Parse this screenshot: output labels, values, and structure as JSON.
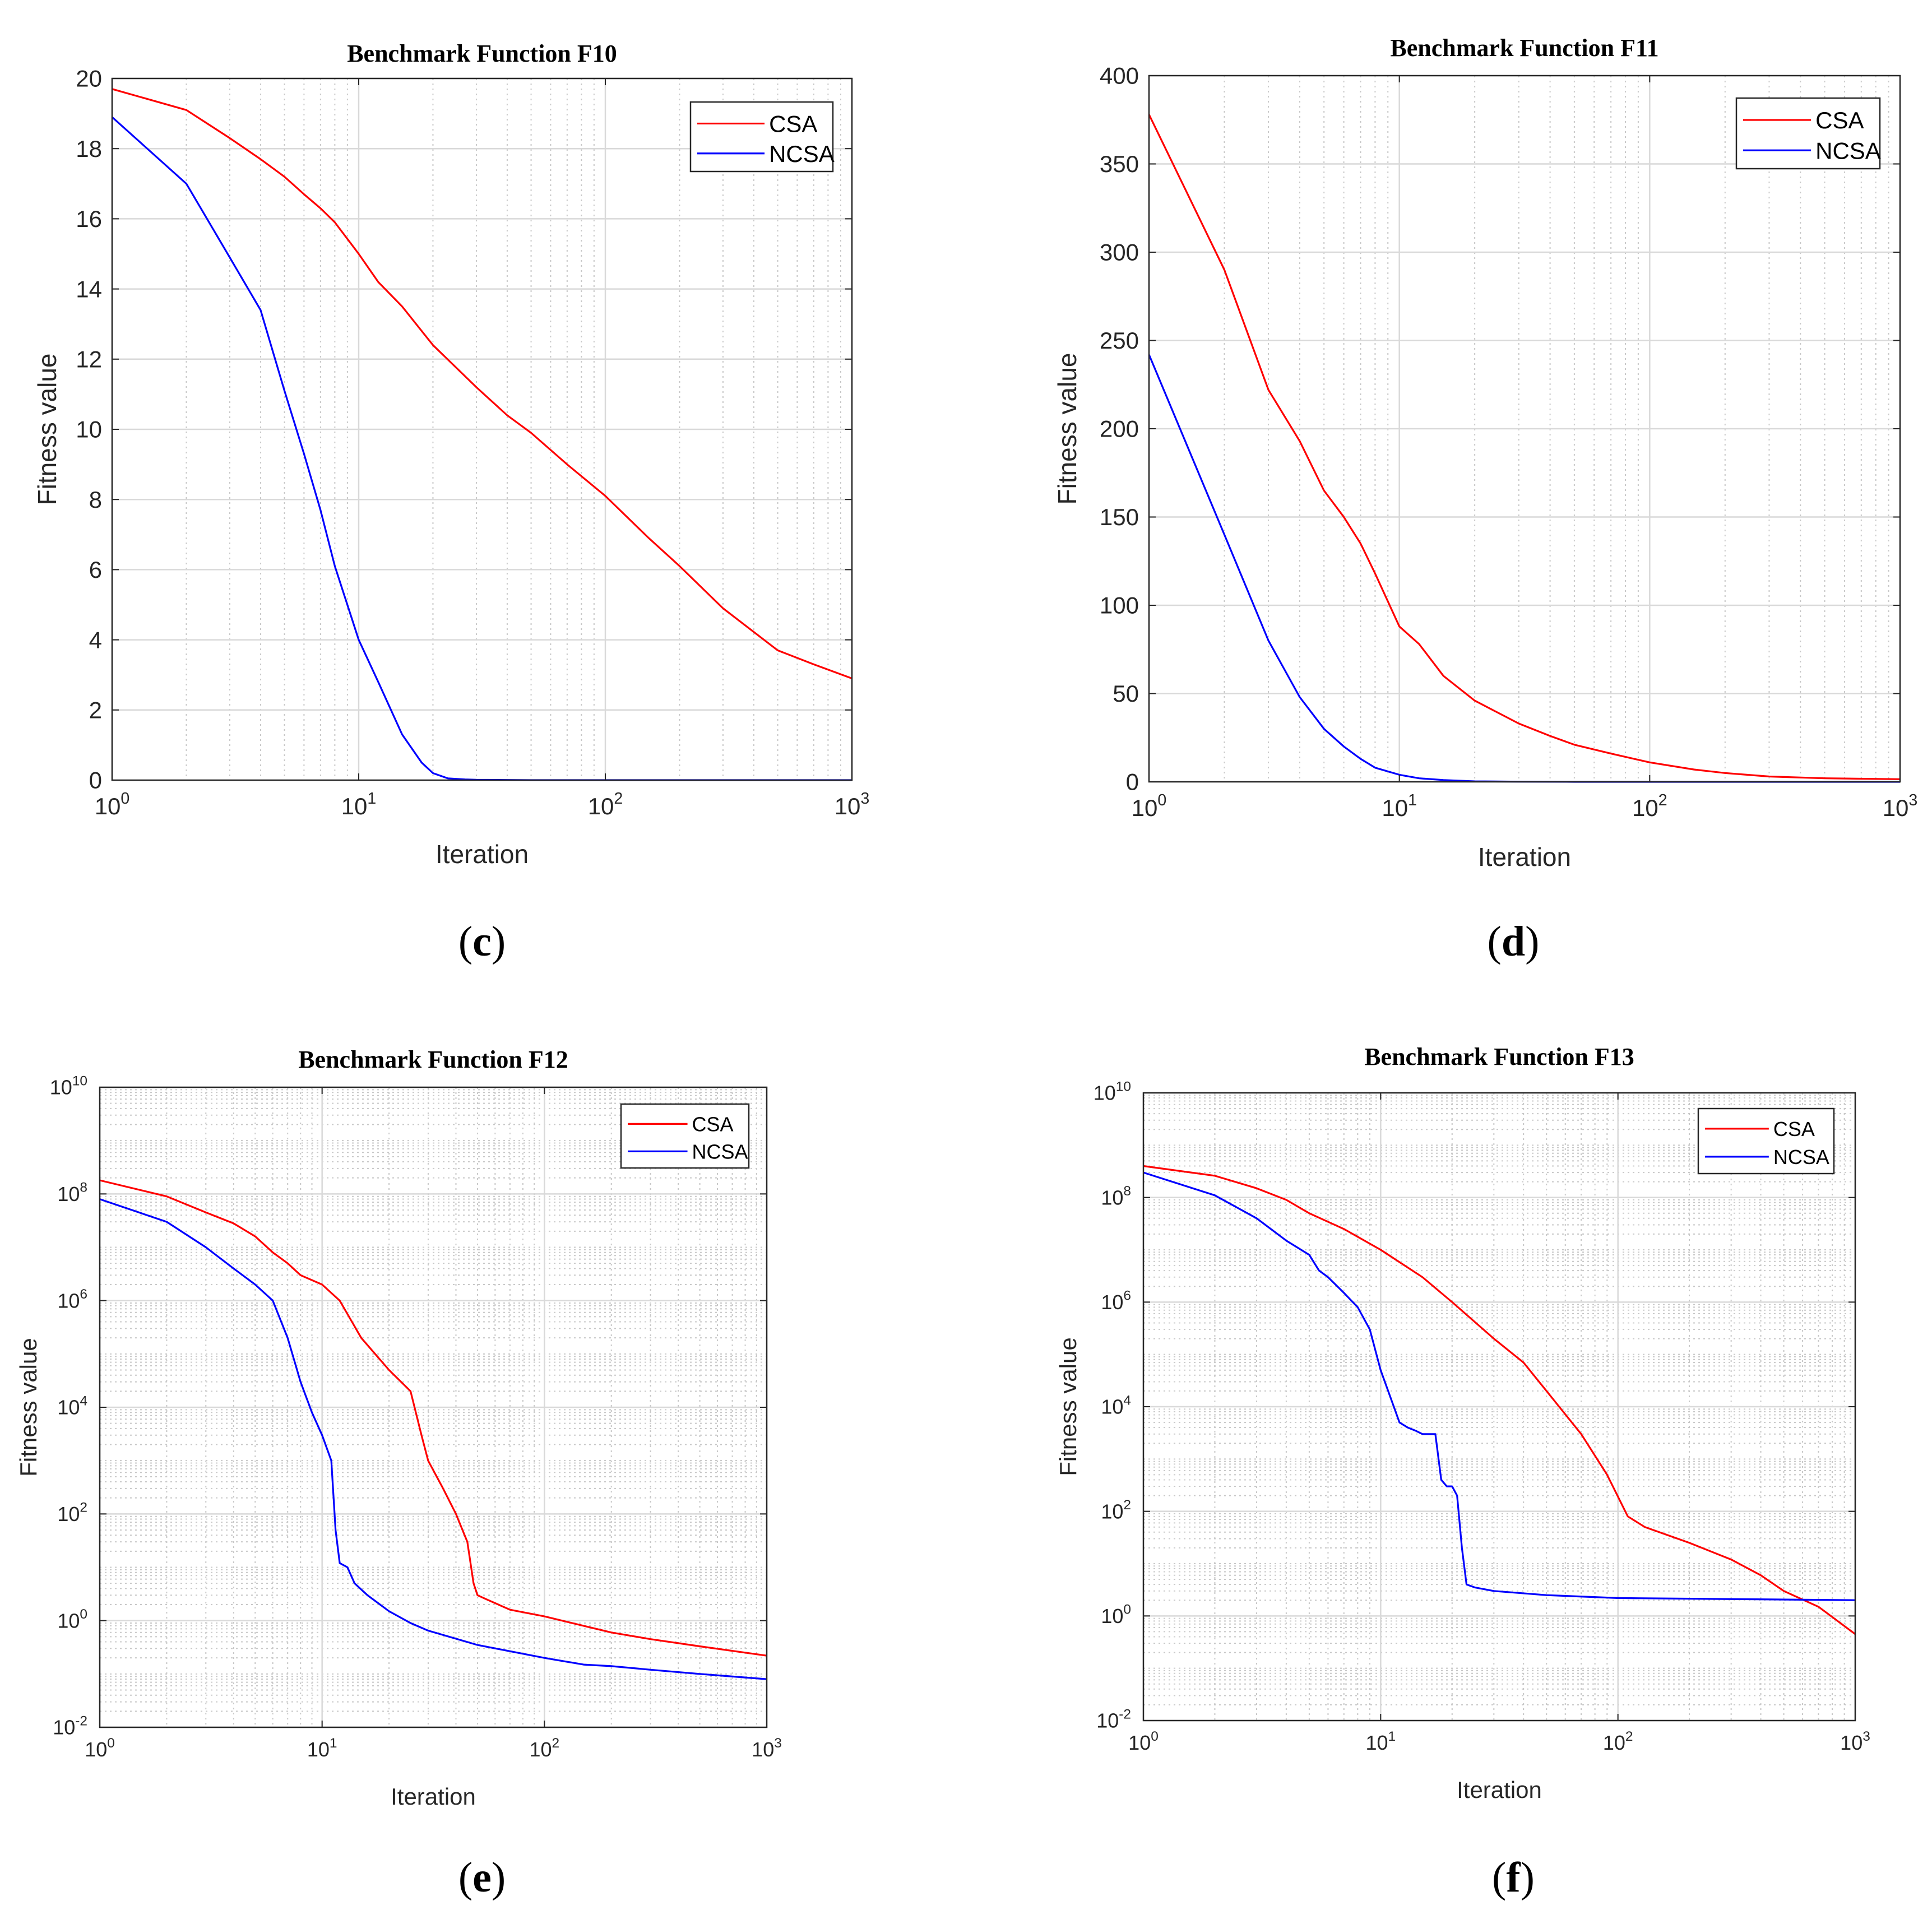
{
  "chart_data": [
    {
      "type": "line",
      "panel_label": "c",
      "title": "Benchmark Function F10",
      "xlabel": "Iteration",
      "ylabel": "Fitness value",
      "xscale": "log",
      "yscale": "linear",
      "xlim": [
        1,
        1000
      ],
      "ylim": [
        0,
        20
      ],
      "xticks": [
        1,
        10,
        100,
        1000
      ],
      "xtick_labels": [
        {
          "base": "10",
          "exp": "0"
        },
        {
          "base": "10",
          "exp": "1"
        },
        {
          "base": "10",
          "exp": "2"
        },
        {
          "base": "10",
          "exp": "3"
        }
      ],
      "yticks": [
        0,
        2,
        4,
        6,
        8,
        10,
        12,
        14,
        16,
        18,
        20
      ],
      "ytick_labels": [
        "0",
        "2",
        "4",
        "6",
        "8",
        "10",
        "12",
        "14",
        "16",
        "18",
        "20"
      ],
      "grid": true,
      "legend_position": "top-right",
      "series": [
        {
          "name": "CSA",
          "color": "#ff0000",
          "x": [
            1,
            2,
            3,
            4,
            5,
            6,
            7,
            8,
            10,
            12,
            15,
            20,
            30,
            40,
            50,
            70,
            100,
            150,
            200,
            300,
            500,
            700,
            1000
          ],
          "y": [
            19.7,
            19.1,
            18.3,
            17.7,
            17.2,
            16.7,
            16.3,
            15.9,
            15.0,
            14.2,
            13.5,
            12.4,
            11.2,
            10.4,
            9.9,
            9.0,
            8.1,
            6.9,
            6.1,
            4.9,
            3.7,
            3.3,
            2.9
          ]
        },
        {
          "name": "NCSA",
          "color": "#0000ff",
          "x": [
            1,
            2,
            3,
            4,
            5,
            6,
            7,
            8,
            10,
            12,
            15,
            18,
            20,
            23,
            27,
            30,
            50,
            100,
            1000
          ],
          "y": [
            18.9,
            17.0,
            14.9,
            13.4,
            11.1,
            9.3,
            7.7,
            6.1,
            4.0,
            2.8,
            1.3,
            0.5,
            0.2,
            0.05,
            0.02,
            0.01,
            0.0,
            0.0,
            0.0
          ]
        }
      ]
    },
    {
      "type": "line",
      "panel_label": "d",
      "title": "Benchmark Function F11",
      "xlabel": "Iteration",
      "ylabel": "Fitness value",
      "xscale": "log",
      "yscale": "linear",
      "xlim": [
        1,
        1000
      ],
      "ylim": [
        0,
        400
      ],
      "xticks": [
        1,
        10,
        100,
        1000
      ],
      "xtick_labels": [
        {
          "base": "10",
          "exp": "0"
        },
        {
          "base": "10",
          "exp": "1"
        },
        {
          "base": "10",
          "exp": "2"
        },
        {
          "base": "10",
          "exp": "3"
        }
      ],
      "yticks": [
        0,
        50,
        100,
        150,
        200,
        250,
        300,
        350,
        400
      ],
      "ytick_labels": [
        "0",
        "50",
        "100",
        "150",
        "200",
        "250",
        "300",
        "350",
        "400"
      ],
      "grid": true,
      "legend_position": "top-right",
      "series": [
        {
          "name": "CSA",
          "color": "#ff0000",
          "x": [
            1,
            2,
            3,
            4,
            5,
            6,
            7,
            8,
            10,
            12,
            15,
            20,
            30,
            40,
            50,
            70,
            100,
            150,
            200,
            300,
            500,
            1000
          ],
          "y": [
            378,
            290,
            222,
            193,
            165,
            150,
            135,
            118,
            88,
            78,
            60,
            46,
            33,
            26,
            21,
            16,
            11,
            7,
            5,
            3,
            2,
            1.5
          ]
        },
        {
          "name": "NCSA",
          "color": "#0000ff",
          "x": [
            1,
            2,
            3,
            4,
            5,
            6,
            7,
            8,
            10,
            12,
            15,
            20,
            30,
            50,
            100,
            1000
          ],
          "y": [
            242,
            140,
            80,
            48,
            30,
            20,
            13,
            8,
            4,
            2,
            1,
            0.3,
            0.1,
            0.0,
            0.0,
            0.0
          ]
        }
      ]
    },
    {
      "type": "line",
      "panel_label": "e",
      "title": "Benchmark Function F12",
      "xlabel": "Iteration",
      "ylabel": "Fitness value",
      "xscale": "log",
      "yscale": "log",
      "xlim": [
        1,
        1000
      ],
      "ylim": [
        0.01,
        10000000000
      ],
      "xticks": [
        1,
        10,
        100,
        1000
      ],
      "xtick_labels": [
        {
          "base": "10",
          "exp": "0"
        },
        {
          "base": "10",
          "exp": "1"
        },
        {
          "base": "10",
          "exp": "2"
        },
        {
          "base": "10",
          "exp": "3"
        }
      ],
      "yticks": [
        0.01,
        1,
        100,
        10000,
        1000000,
        100000000,
        10000000000
      ],
      "ytick_labels": [
        {
          "base": "10",
          "exp": "-2"
        },
        {
          "base": "10",
          "exp": "0"
        },
        {
          "base": "10",
          "exp": "2"
        },
        {
          "base": "10",
          "exp": "4"
        },
        {
          "base": "10",
          "exp": "6"
        },
        {
          "base": "10",
          "exp": "8"
        },
        {
          "base": "10",
          "exp": "10"
        }
      ],
      "grid": true,
      "legend_position": "top-right",
      "series": [
        {
          "name": "CSA",
          "color": "#ff0000",
          "x": [
            1,
            2,
            3,
            4,
            5,
            6,
            7,
            8,
            10,
            12,
            15,
            20,
            25,
            28,
            30,
            35,
            40,
            45,
            48,
            50,
            55,
            70,
            100,
            150,
            200,
            300,
            500,
            1000
          ],
          "y": [
            180000000,
            90000000,
            45000000,
            28000000,
            16000000,
            8000000,
            5000000,
            3000000,
            2000000,
            1000000,
            200000,
            50000,
            20000,
            3000,
            1000,
            300,
            100,
            30,
            5,
            3,
            2.5,
            1.6,
            1.2,
            0.8,
            0.6,
            0.45,
            0.33,
            0.22
          ]
        },
        {
          "name": "NCSA",
          "color": "#0000ff",
          "x": [
            1,
            2,
            3,
            4,
            5,
            6,
            7,
            8,
            9,
            10,
            11,
            11.5,
            12,
            13,
            14,
            16,
            20,
            25,
            30,
            50,
            100,
            150,
            200,
            300,
            500,
            1000
          ],
          "y": [
            80000000,
            30000000,
            10000000,
            4000000,
            2000000,
            1000000,
            200000,
            30000,
            8000,
            3000,
            1000,
            50,
            12,
            10,
            5,
            3,
            1.5,
            0.9,
            0.65,
            0.35,
            0.2,
            0.15,
            0.14,
            0.12,
            0.1,
            0.08
          ]
        }
      ]
    },
    {
      "type": "line",
      "panel_label": "f",
      "title": "Benchmark Function F13",
      "xlabel": "Iteration",
      "ylabel": "Fitness value",
      "xscale": "log",
      "yscale": "log",
      "xlim": [
        1,
        1000
      ],
      "ylim": [
        0.01,
        10000000000
      ],
      "xticks": [
        1,
        10,
        100,
        1000
      ],
      "xtick_labels": [
        {
          "base": "10",
          "exp": "0"
        },
        {
          "base": "10",
          "exp": "1"
        },
        {
          "base": "10",
          "exp": "2"
        },
        {
          "base": "10",
          "exp": "3"
        }
      ],
      "yticks": [
        0.01,
        1,
        100,
        10000,
        1000000,
        100000000,
        10000000000
      ],
      "ytick_labels": [
        {
          "base": "10",
          "exp": "-2"
        },
        {
          "base": "10",
          "exp": "0"
        },
        {
          "base": "10",
          "exp": "2"
        },
        {
          "base": "10",
          "exp": "4"
        },
        {
          "base": "10",
          "exp": "6"
        },
        {
          "base": "10",
          "exp": "8"
        },
        {
          "base": "10",
          "exp": "10"
        }
      ],
      "grid": true,
      "legend_position": "top-right",
      "series": [
        {
          "name": "CSA",
          "color": "#ff0000",
          "x": [
            1,
            2,
            3,
            4,
            5,
            7,
            10,
            15,
            20,
            30,
            40,
            50,
            70,
            90,
            110,
            130,
            200,
            300,
            400,
            500,
            700,
            1000
          ],
          "y": [
            400000000,
            260000000,
            150000000,
            90000000,
            50000000,
            25000000,
            10000000,
            3000000,
            1000000,
            200000,
            70000,
            20000,
            3000,
            500,
            80,
            50,
            25,
            12,
            6,
            3,
            1.5,
            0.45
          ]
        },
        {
          "name": "NCSA",
          "color": "#0000ff",
          "x": [
            1,
            2,
            3,
            4,
            5,
            5.5,
            6,
            7,
            8,
            9,
            10,
            11,
            12,
            13,
            14,
            15,
            17,
            18,
            19,
            20,
            21,
            22,
            23,
            25,
            30,
            50,
            100,
            1000
          ],
          "y": [
            300000000,
            110000000,
            40000000,
            15000000,
            8000000,
            4000000,
            3000000,
            1500000,
            800000,
            300000,
            50000,
            15000,
            5000,
            4000,
            3500,
            3000,
            3000,
            400,
            300,
            300,
            200,
            20,
            4,
            3.5,
            3,
            2.5,
            2.2,
            2
          ]
        }
      ]
    }
  ]
}
